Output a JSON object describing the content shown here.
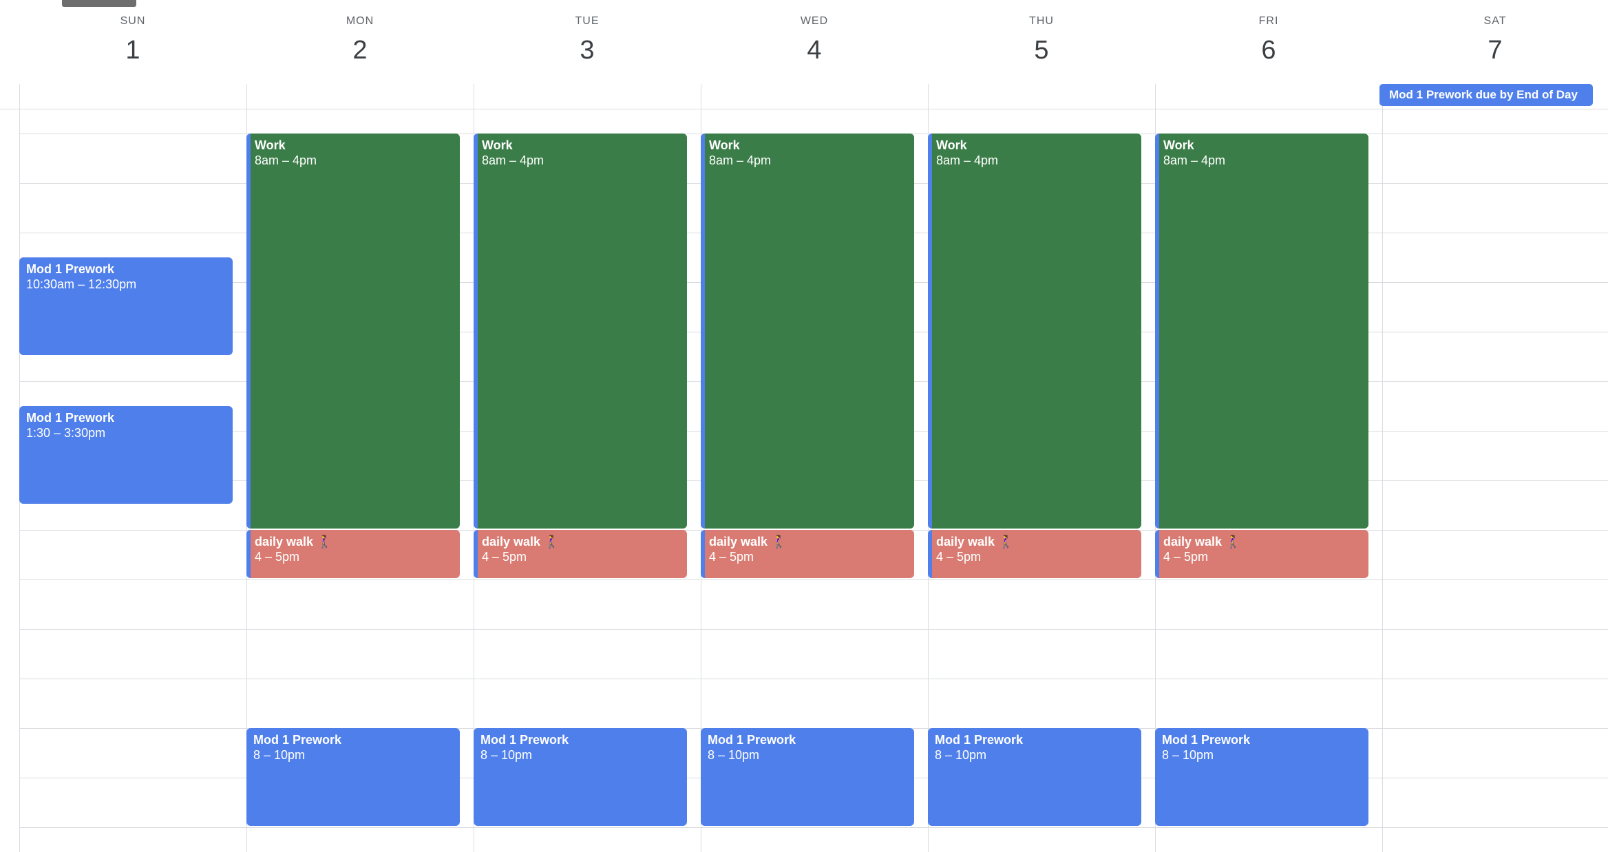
{
  "days": [
    {
      "dow": "SUN",
      "num": "1"
    },
    {
      "dow": "MON",
      "num": "2"
    },
    {
      "dow": "TUE",
      "num": "3"
    },
    {
      "dow": "WED",
      "num": "4"
    },
    {
      "dow": "THU",
      "num": "5"
    },
    {
      "dow": "FRI",
      "num": "6"
    },
    {
      "dow": "SAT",
      "num": "7"
    }
  ],
  "allday": {
    "title": "Mod 1 Prework due by End of Day"
  },
  "events": {
    "sun_prework_1": {
      "title": "Mod 1 Prework",
      "time": "10:30am – 12:30pm"
    },
    "sun_prework_2": {
      "title": "Mod 1 Prework",
      "time": "1:30 – 3:30pm"
    },
    "work": {
      "title": "Work",
      "time": "8am – 4pm"
    },
    "walk": {
      "title": "daily walk 🚶‍♀️",
      "time": "4 – 5pm"
    },
    "evening_prework": {
      "title": "Mod 1 Prework",
      "time": "8 – 10pm"
    }
  },
  "colors": {
    "blue": "#4f7fea",
    "green": "#3a7d48",
    "salmon": "#d97b72"
  }
}
